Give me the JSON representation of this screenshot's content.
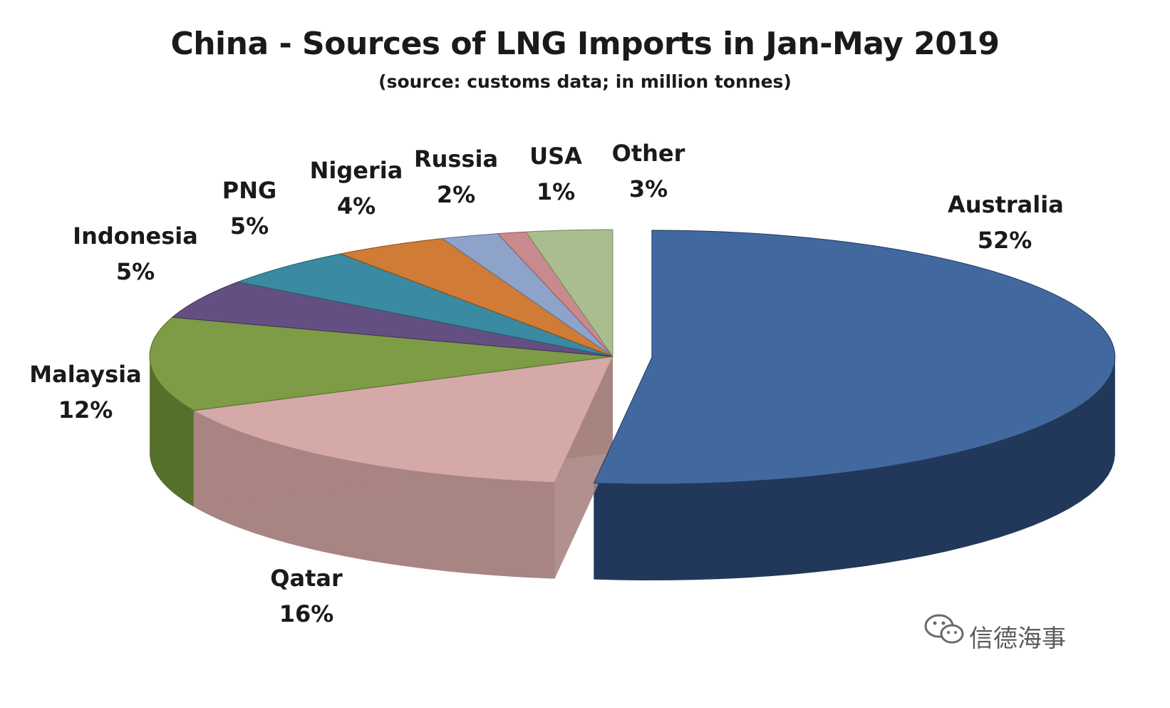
{
  "chart_data": {
    "type": "pie",
    "title": "China - Sources of LNG Imports in Jan-May 2019",
    "subtitle": "(source: customs data; in million tonnes)",
    "series": [
      {
        "name": "Australia",
        "value": 52,
        "label": "52%",
        "color": "#4169a0",
        "side": "#22385a",
        "exploded": true
      },
      {
        "name": "Qatar",
        "value": 16,
        "label": "16%",
        "color": "#d4a9a8",
        "side": "#a88482",
        "exploded": false
      },
      {
        "name": "Malaysia",
        "value": 12,
        "label": "12%",
        "color": "#7e9b45",
        "side": "#55702a",
        "exploded": false
      },
      {
        "name": "Indonesia",
        "value": 5,
        "label": "5%",
        "color": "#644f82",
        "side": "#3f3057",
        "exploded": false
      },
      {
        "name": "PNG",
        "value": 5,
        "label": "5%",
        "color": "#3a8aa1",
        "side": "#21606f",
        "exploded": false
      },
      {
        "name": "Nigeria",
        "value": 4,
        "label": "4%",
        "color": "#d07b36",
        "side": "#8a4d1a",
        "exploded": false
      },
      {
        "name": "Russia",
        "value": 2,
        "label": "2%",
        "color": "#8da3c9",
        "side": "#5d7097",
        "exploded": false
      },
      {
        "name": "USA",
        "value": 1,
        "label": "1%",
        "color": "#c98a8d",
        "side": "#8e5759",
        "exploded": false
      },
      {
        "name": "Other",
        "value": 3,
        "label": "3%",
        "color": "#a9bd8e",
        "side": "#76895e",
        "exploded": false
      }
    ]
  },
  "watermark": {
    "text": "信德海事",
    "icon": "wechat-icon"
  }
}
